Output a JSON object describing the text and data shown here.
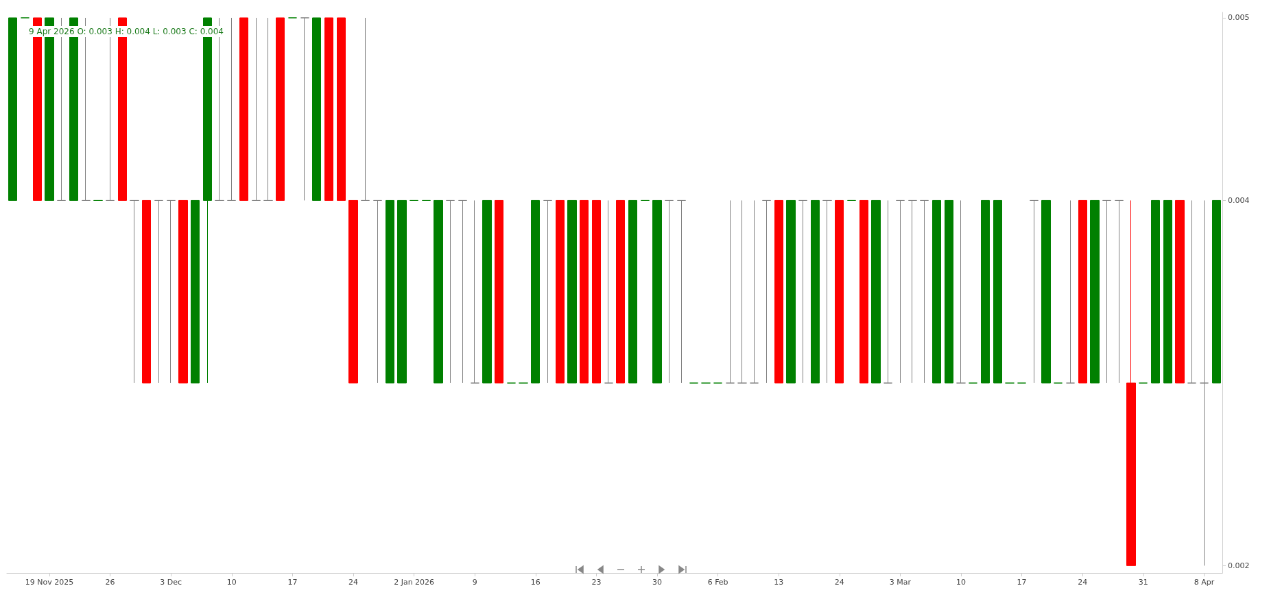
{
  "chart_data": {
    "type": "candlestick",
    "title": "9 Apr 2026 O: 0.003 H: 0.004 L: 0.003 C: 0.004",
    "categories": [
      null,
      null,
      null,
      "19 Nov 2025",
      null,
      null,
      null,
      null,
      "26",
      null,
      null,
      null,
      null,
      "3 Dec",
      null,
      null,
      null,
      null,
      "10",
      null,
      null,
      null,
      null,
      "17",
      null,
      null,
      null,
      null,
      "24",
      null,
      null,
      null,
      null,
      "2 Jan 2026",
      null,
      null,
      null,
      null,
      "9",
      null,
      null,
      null,
      null,
      "16",
      null,
      null,
      null,
      null,
      "23",
      null,
      null,
      null,
      null,
      "30",
      null,
      null,
      null,
      null,
      "6 Feb",
      null,
      null,
      null,
      null,
      "13",
      null,
      null,
      null,
      null,
      "24",
      null,
      null,
      null,
      null,
      "3 Mar",
      null,
      null,
      null,
      null,
      "10",
      null,
      null,
      null,
      null,
      "17",
      null,
      null,
      null,
      null,
      "24",
      null,
      null,
      null,
      null,
      "31",
      null,
      null,
      null,
      null,
      "8 Apr",
      null
    ],
    "ohlc": [
      [
        0.004,
        0.005,
        0.004,
        0.005
      ],
      [
        0.005,
        0.005,
        0.005,
        0.005
      ],
      [
        0.005,
        0.005,
        0.004,
        0.004
      ],
      [
        0.004,
        0.005,
        0.004,
        0.005
      ],
      [
        0.004,
        0.005,
        0.004,
        0.004
      ],
      [
        0.004,
        0.005,
        0.004,
        0.005
      ],
      [
        0.004,
        0.005,
        0.004,
        0.004
      ],
      [
        0.004,
        0.004,
        0.004,
        0.004
      ],
      [
        0.004,
        0.005,
        0.004,
        0.004
      ],
      [
        0.005,
        0.005,
        0.004,
        0.004
      ],
      [
        0.004,
        0.004,
        0.003,
        0.004
      ],
      [
        0.004,
        0.004,
        0.003,
        0.003
      ],
      [
        0.004,
        0.004,
        0.003,
        0.004
      ],
      [
        0.004,
        0.004,
        0.003,
        0.004
      ],
      [
        0.004,
        0.004,
        0.003,
        0.003
      ],
      [
        0.003,
        0.004,
        0.003,
        0.004
      ],
      [
        0.004,
        0.005,
        0.003,
        0.005
      ],
      [
        0.004,
        0.005,
        0.004,
        0.004
      ],
      [
        0.004,
        0.005,
        0.004,
        0.004
      ],
      [
        0.005,
        0.005,
        0.004,
        0.004
      ],
      [
        0.004,
        0.005,
        0.004,
        0.004
      ],
      [
        0.004,
        0.005,
        0.004,
        0.004
      ],
      [
        0.005,
        0.005,
        0.004,
        0.004
      ],
      [
        0.005,
        0.005,
        0.005,
        0.005
      ],
      [
        0.005,
        0.005,
        0.004,
        0.005
      ],
      [
        0.004,
        0.005,
        0.004,
        0.005
      ],
      [
        0.005,
        0.005,
        0.004,
        0.004
      ],
      [
        0.005,
        0.005,
        0.004,
        0.004
      ],
      [
        0.004,
        0.004,
        0.003,
        0.003
      ],
      [
        0.004,
        0.005,
        0.004,
        0.004
      ],
      [
        0.004,
        0.004,
        0.003,
        0.004
      ],
      [
        0.003,
        0.004,
        0.003,
        0.004
      ],
      [
        0.003,
        0.004,
        0.003,
        0.004
      ],
      [
        0.004,
        0.004,
        0.004,
        0.004
      ],
      [
        0.004,
        0.004,
        0.004,
        0.004
      ],
      [
        0.003,
        0.004,
        0.003,
        0.004
      ],
      [
        0.004,
        0.004,
        0.003,
        0.004
      ],
      [
        0.004,
        0.004,
        0.003,
        0.004
      ],
      [
        0.003,
        0.004,
        0.003,
        0.003
      ],
      [
        0.003,
        0.004,
        0.003,
        0.004
      ],
      [
        0.004,
        0.004,
        0.003,
        0.003
      ],
      [
        0.003,
        0.003,
        0.003,
        0.003
      ],
      [
        0.003,
        0.003,
        0.003,
        0.003
      ],
      [
        0.003,
        0.004,
        0.003,
        0.004
      ],
      [
        0.004,
        0.004,
        0.003,
        0.004
      ],
      [
        0.004,
        0.004,
        0.003,
        0.003
      ],
      [
        0.003,
        0.004,
        0.003,
        0.004
      ],
      [
        0.004,
        0.004,
        0.003,
        0.003
      ],
      [
        0.004,
        0.004,
        0.003,
        0.003
      ],
      [
        0.003,
        0.004,
        0.003,
        0.003
      ],
      [
        0.004,
        0.004,
        0.003,
        0.003
      ],
      [
        0.003,
        0.004,
        0.003,
        0.004
      ],
      [
        0.004,
        0.004,
        0.004,
        0.004
      ],
      [
        0.003,
        0.004,
        0.003,
        0.004
      ],
      [
        0.004,
        0.004,
        0.003,
        0.004
      ],
      [
        0.004,
        0.004,
        0.003,
        0.004
      ],
      [
        0.003,
        0.003,
        0.003,
        0.003
      ],
      [
        0.003,
        0.003,
        0.003,
        0.003
      ],
      [
        0.003,
        0.003,
        0.003,
        0.003
      ],
      [
        0.003,
        0.004,
        0.003,
        0.003
      ],
      [
        0.003,
        0.004,
        0.003,
        0.003
      ],
      [
        0.003,
        0.004,
        0.003,
        0.003
      ],
      [
        0.004,
        0.004,
        0.003,
        0.004
      ],
      [
        0.004,
        0.004,
        0.003,
        0.003
      ],
      [
        0.003,
        0.004,
        0.003,
        0.004
      ],
      [
        0.004,
        0.004,
        0.003,
        0.004
      ],
      [
        0.003,
        0.004,
        0.003,
        0.004
      ],
      [
        0.004,
        0.004,
        0.003,
        0.004
      ],
      [
        0.004,
        0.004,
        0.003,
        0.003
      ],
      [
        0.004,
        0.004,
        0.004,
        0.004
      ],
      [
        0.004,
        0.004,
        0.003,
        0.003
      ],
      [
        0.003,
        0.004,
        0.003,
        0.004
      ],
      [
        0.003,
        0.004,
        0.003,
        0.003
      ],
      [
        0.004,
        0.004,
        0.003,
        0.004
      ],
      [
        0.004,
        0.004,
        0.003,
        0.004
      ],
      [
        0.004,
        0.004,
        0.003,
        0.004
      ],
      [
        0.003,
        0.004,
        0.003,
        0.004
      ],
      [
        0.003,
        0.004,
        0.003,
        0.004
      ],
      [
        0.003,
        0.004,
        0.003,
        0.003
      ],
      [
        0.003,
        0.003,
        0.003,
        0.003
      ],
      [
        0.003,
        0.004,
        0.003,
        0.004
      ],
      [
        0.003,
        0.004,
        0.003,
        0.004
      ],
      [
        0.003,
        0.003,
        0.003,
        0.003
      ],
      [
        0.003,
        0.003,
        0.003,
        0.003
      ],
      [
        0.004,
        0.004,
        0.003,
        0.004
      ],
      [
        0.003,
        0.004,
        0.003,
        0.004
      ],
      [
        0.003,
        0.003,
        0.003,
        0.003
      ],
      [
        0.003,
        0.004,
        0.003,
        0.003
      ],
      [
        0.004,
        0.004,
        0.003,
        0.003
      ],
      [
        0.003,
        0.004,
        0.003,
        0.004
      ],
      [
        0.004,
        0.004,
        0.003,
        0.004
      ],
      [
        0.004,
        0.004,
        0.003,
        0.004
      ],
      [
        0.003,
        0.004,
        0.002,
        0.002
      ],
      [
        0.003,
        0.003,
        0.003,
        0.003
      ],
      [
        0.003,
        0.004,
        0.003,
        0.004
      ],
      [
        0.003,
        0.004,
        0.003,
        0.004
      ],
      [
        0.004,
        0.004,
        0.003,
        0.003
      ],
      [
        0.003,
        0.004,
        0.003,
        0.003
      ],
      [
        0.003,
        0.004,
        0.002,
        0.003
      ],
      [
        0.003,
        0.004,
        0.003,
        0.004
      ]
    ],
    "colors": [
      "#008000",
      "#008000",
      "#ff0000",
      "#008000",
      "#808080",
      "#008000",
      "#808080",
      "#008000",
      "#808080",
      "#ff0000",
      "#808080",
      "#ff0000",
      "#808080",
      "#808080",
      "#ff0000",
      "#008000",
      "#008000",
      "#808080",
      "#808080",
      "#ff0000",
      "#808080",
      "#808080",
      "#ff0000",
      "#008000",
      "#808080",
      "#008000",
      "#ff0000",
      "#ff0000",
      "#ff0000",
      "#808080",
      "#808080",
      "#008000",
      "#008000",
      "#008000",
      "#008000",
      "#008000",
      "#808080",
      "#808080",
      "#808080",
      "#008000",
      "#ff0000",
      "#008000",
      "#008000",
      "#008000",
      "#808080",
      "#ff0000",
      "#008000",
      "#ff0000",
      "#ff0000",
      "#808080",
      "#ff0000",
      "#008000",
      "#008000",
      "#008000",
      "#808080",
      "#808080",
      "#008000",
      "#008000",
      "#008000",
      "#808080",
      "#808080",
      "#808080",
      "#808080",
      "#ff0000",
      "#008000",
      "#808080",
      "#008000",
      "#808080",
      "#ff0000",
      "#008000",
      "#ff0000",
      "#008000",
      "#808080",
      "#808080",
      "#808080",
      "#808080",
      "#008000",
      "#008000",
      "#808080",
      "#008000",
      "#008000",
      "#008000",
      "#008000",
      "#008000",
      "#808080",
      "#008000",
      "#008000",
      "#808080",
      "#ff0000",
      "#008000",
      "#808080",
      "#808080",
      "#ff0000",
      "#008000",
      "#008000",
      "#008000",
      "#ff0000",
      "#808080",
      "#808080",
      "#008000"
    ],
    "ylim": [
      0.00196,
      0.00503
    ],
    "yticks": [
      0.002,
      {
        "value": 0.004,
        "label": "0.004"
      },
      0.005
    ]
  }
}
